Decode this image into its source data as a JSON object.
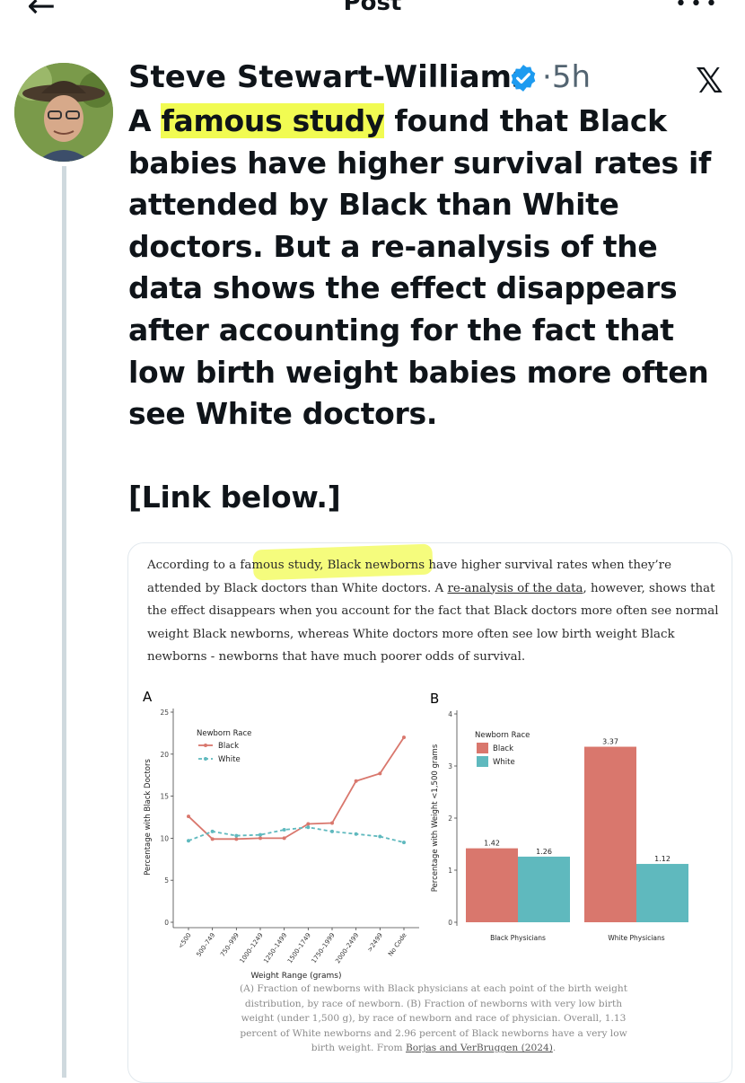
{
  "header": {
    "title": "Post",
    "back_icon": "arrow-left-icon",
    "more_icon": "more-icon"
  },
  "post": {
    "author": "Steve Stewart-Williams",
    "separator": "·",
    "time": "5h",
    "platform_logo": "x-logo",
    "text_parts": {
      "pre": "A ",
      "highlight": "famous study",
      "post": " found that Black babies have higher survival rates if attended by Black than White doctors. But a re-analysis of the data shows the effect disappears after accounting for the fact that low birth weight babies more often see White doctors."
    },
    "link_note": "[Link below.]"
  },
  "article": {
    "p1": "According to a famous study, Black newborns have higher survival rates when they’re attended by Black doctors than White doctors. A ",
    "link": "re-analysis of the data",
    "p2": ", however, shows that the effect disappears when you account for the fact that Black doctors more often see normal weight Black newborns, whereas White doctors more often see low birth weight Black newborns - newborns that have much poorer odds of survival.",
    "caption_pre": "(A) Fraction of newborns with Black physicians at each point of the birth weight distribution, by race of newborn. (B) Fraction of newborns with very low birth weight (under 1,500 g), by race of newborn and race of physician. Overall, 1.13 percent of White newborns and 2.96 percent of Black newborns have a very low birth weight. From ",
    "caption_link": "Borjas and VerBruggen (2024)",
    "caption_post": "."
  },
  "colors": {
    "black_series": "#d9776d",
    "white_series": "#5fb9be",
    "highlight": "#f1fb52"
  },
  "chart_data": [
    {
      "type": "line",
      "panel_label": "A",
      "xlabel": "Weight Range (grams)",
      "ylabel": "Percentage with Black Doctors",
      "ylim": [
        0,
        25
      ],
      "yticks": [
        0,
        5,
        10,
        15,
        20,
        25
      ],
      "categories": [
        "<500",
        "500–749",
        "750–999",
        "1000–1249",
        "1250–1499",
        "1500–1749",
        "1750–1999",
        "2000–2499",
        ">2499",
        "No Code"
      ],
      "legend_title": "Newborn Race",
      "legend_position": "top-left",
      "series": [
        {
          "name": "Black",
          "values": [
            12.6,
            9.9,
            9.9,
            10.0,
            10.0,
            11.7,
            11.8,
            16.8,
            17.7,
            22.0
          ]
        },
        {
          "name": "White",
          "values": [
            9.7,
            10.8,
            10.3,
            10.4,
            11.0,
            11.3,
            10.8,
            10.5,
            10.2,
            9.5
          ]
        }
      ]
    },
    {
      "type": "bar",
      "panel_label": "B",
      "xlabel": "",
      "ylabel": "Percentage with Weight <1,500 grams",
      "ylim": [
        0,
        4
      ],
      "yticks": [
        0,
        1,
        2,
        3,
        4
      ],
      "categories": [
        "Black Physicians",
        "White Physicians"
      ],
      "legend_title": "Newborn Race",
      "legend_position": "top-left",
      "series": [
        {
          "name": "Black",
          "values": [
            1.42,
            3.37
          ],
          "labels": [
            "1.42",
            "3.37"
          ]
        },
        {
          "name": "White",
          "values": [
            1.26,
            1.12
          ],
          "labels": [
            "1.26",
            "1.12"
          ]
        }
      ]
    }
  ]
}
